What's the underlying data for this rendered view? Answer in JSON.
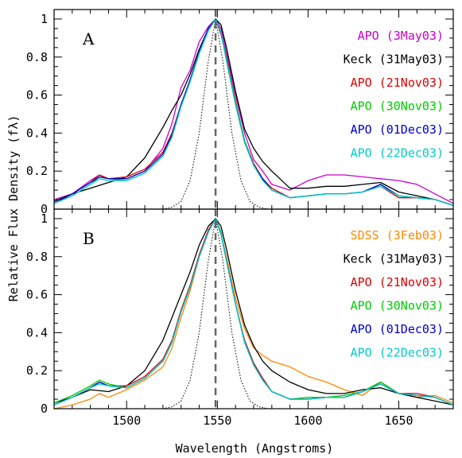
{
  "chart_data": [
    {
      "type": "line",
      "panel_label": "A",
      "xlim": [
        1460,
        1680
      ],
      "ylim": [
        0,
        1.05
      ],
      "xticks": [
        1500,
        1550,
        1600,
        1650
      ],
      "yticks": [
        0,
        0.2,
        0.4,
        0.6,
        0.8,
        1
      ],
      "ytick_labels": [
        "0",
        "0.2",
        "0.4",
        "0.6",
        "0.8",
        "1"
      ],
      "vline": 1549,
      "legend_position": "top-right",
      "series": [
        {
          "name": "APO (3May03)",
          "color": "#cc00cc",
          "x": [
            1460,
            1470,
            1480,
            1485,
            1490,
            1500,
            1510,
            1520,
            1525,
            1530,
            1535,
            1540,
            1545,
            1549,
            1552,
            1555,
            1560,
            1565,
            1570,
            1575,
            1580,
            1590,
            1600,
            1610,
            1620,
            1630,
            1640,
            1650,
            1660,
            1670,
            1680
          ],
          "y": [
            0.05,
            0.08,
            0.15,
            0.18,
            0.16,
            0.16,
            0.2,
            0.32,
            0.45,
            0.64,
            0.73,
            0.88,
            0.96,
            1.0,
            0.95,
            0.82,
            0.6,
            0.4,
            0.26,
            0.2,
            0.13,
            0.1,
            0.15,
            0.18,
            0.18,
            0.17,
            0.16,
            0.15,
            0.13,
            0.08,
            0.03
          ]
        },
        {
          "name": "Keck (31May03)",
          "color": "#000000",
          "x": [
            1460,
            1470,
            1480,
            1490,
            1500,
            1510,
            1520,
            1525,
            1530,
            1535,
            1540,
            1545,
            1549,
            1552,
            1555,
            1560,
            1565,
            1570,
            1575,
            1580,
            1590,
            1600,
            1610,
            1620,
            1630,
            1640,
            1650,
            1660,
            1670,
            1680
          ],
          "y": [
            0.04,
            0.08,
            0.11,
            0.14,
            0.17,
            0.27,
            0.43,
            0.52,
            0.6,
            0.71,
            0.84,
            0.95,
            1.0,
            0.97,
            0.85,
            0.62,
            0.42,
            0.32,
            0.25,
            0.2,
            0.11,
            0.11,
            0.12,
            0.12,
            0.13,
            0.14,
            0.09,
            0.07,
            0.05,
            0.02
          ]
        },
        {
          "name": "APO (21Nov03)",
          "color": "#dd0000",
          "x": [
            1460,
            1470,
            1480,
            1485,
            1490,
            1500,
            1510,
            1520,
            1525,
            1530,
            1535,
            1540,
            1545,
            1549,
            1552,
            1555,
            1560,
            1565,
            1570,
            1575,
            1580,
            1590,
            1600,
            1610,
            1620,
            1630,
            1640,
            1650,
            1660,
            1670,
            1680
          ],
          "y": [
            0.03,
            0.08,
            0.14,
            0.18,
            0.16,
            0.17,
            0.21,
            0.3,
            0.4,
            0.55,
            0.68,
            0.82,
            0.94,
            1.0,
            0.92,
            0.8,
            0.57,
            0.36,
            0.24,
            0.16,
            0.11,
            0.06,
            0.07,
            0.08,
            0.08,
            0.09,
            0.12,
            0.06,
            0.06,
            0.05,
            0.02
          ]
        },
        {
          "name": "APO (30Nov03)",
          "color": "#00cc00",
          "x": [
            1460,
            1470,
            1480,
            1485,
            1490,
            1500,
            1510,
            1520,
            1525,
            1530,
            1535,
            1540,
            1545,
            1549,
            1552,
            1555,
            1560,
            1565,
            1570,
            1575,
            1580,
            1590,
            1600,
            1610,
            1620,
            1630,
            1640,
            1650,
            1660,
            1670,
            1680
          ],
          "y": [
            0.03,
            0.07,
            0.13,
            0.17,
            0.16,
            0.15,
            0.19,
            0.28,
            0.38,
            0.54,
            0.67,
            0.82,
            0.94,
            1.0,
            0.93,
            0.78,
            0.55,
            0.35,
            0.23,
            0.15,
            0.1,
            0.06,
            0.07,
            0.08,
            0.08,
            0.09,
            0.13,
            0.07,
            0.06,
            0.05,
            0.02
          ]
        },
        {
          "name": "APO (01Dec03)",
          "color": "#0000cc",
          "x": [
            1460,
            1470,
            1480,
            1485,
            1490,
            1500,
            1510,
            1520,
            1525,
            1530,
            1535,
            1540,
            1545,
            1549,
            1552,
            1555,
            1560,
            1565,
            1570,
            1575,
            1580,
            1590,
            1600,
            1610,
            1620,
            1630,
            1640,
            1650,
            1660,
            1670,
            1680
          ],
          "y": [
            0.03,
            0.08,
            0.14,
            0.17,
            0.16,
            0.16,
            0.2,
            0.29,
            0.39,
            0.55,
            0.68,
            0.83,
            0.95,
            1.0,
            0.93,
            0.79,
            0.56,
            0.36,
            0.23,
            0.16,
            0.1,
            0.06,
            0.07,
            0.08,
            0.08,
            0.09,
            0.13,
            0.07,
            0.06,
            0.05,
            0.02
          ]
        },
        {
          "name": "APO (22Dec03)",
          "color": "#00cccc",
          "x": [
            1460,
            1470,
            1480,
            1485,
            1490,
            1500,
            1510,
            1520,
            1525,
            1530,
            1535,
            1540,
            1545,
            1549,
            1552,
            1555,
            1560,
            1565,
            1570,
            1575,
            1580,
            1590,
            1600,
            1610,
            1620,
            1630,
            1640,
            1650,
            1660,
            1670,
            1680
          ],
          "y": [
            0.03,
            0.07,
            0.13,
            0.16,
            0.15,
            0.15,
            0.19,
            0.28,
            0.38,
            0.54,
            0.67,
            0.82,
            0.94,
            1.0,
            0.93,
            0.79,
            0.56,
            0.36,
            0.23,
            0.15,
            0.1,
            0.06,
            0.07,
            0.08,
            0.08,
            0.09,
            0.12,
            0.07,
            0.06,
            0.05,
            0.02
          ]
        },
        {
          "name": "",
          "color": "#000000",
          "style": "dotted",
          "x": [
            1520,
            1525,
            1530,
            1535,
            1540,
            1545,
            1549,
            1553,
            1558,
            1563,
            1568,
            1573,
            1578
          ],
          "y": [
            0.0,
            0.01,
            0.04,
            0.15,
            0.4,
            0.78,
            1.0,
            0.78,
            0.4,
            0.15,
            0.04,
            0.01,
            0.0
          ]
        }
      ]
    },
    {
      "type": "line",
      "panel_label": "B",
      "xlim": [
        1460,
        1680
      ],
      "ylim": [
        0,
        1.05
      ],
      "xticks": [
        1500,
        1550,
        1600,
        1650
      ],
      "xtick_labels": [
        "1500",
        "1550",
        "1600",
        "1650"
      ],
      "yticks": [
        0,
        0.2,
        0.4,
        0.6,
        0.8,
        1
      ],
      "ytick_labels": [
        "0",
        "0.2",
        "0.4",
        "0.6",
        "0.8",
        "1"
      ],
      "vline": 1549,
      "legend_position": "top-right",
      "series": [
        {
          "name": "SDSS (3Feb03)",
          "color": "#ff8800",
          "x": [
            1460,
            1470,
            1480,
            1485,
            1490,
            1500,
            1510,
            1520,
            1525,
            1530,
            1535,
            1540,
            1545,
            1549,
            1552,
            1555,
            1560,
            1565,
            1570,
            1575,
            1580,
            1590,
            1600,
            1610,
            1620,
            1630,
            1640,
            1650,
            1660,
            1670,
            1680
          ],
          "y": [
            0.0,
            0.02,
            0.05,
            0.08,
            0.06,
            0.1,
            0.15,
            0.22,
            0.32,
            0.48,
            0.62,
            0.8,
            0.93,
            1.0,
            0.92,
            0.8,
            0.58,
            0.42,
            0.32,
            0.28,
            0.25,
            0.22,
            0.17,
            0.14,
            0.1,
            0.07,
            0.14,
            0.08,
            0.06,
            0.07,
            0.03
          ]
        },
        {
          "name": "Keck (31May03)",
          "color": "#000000",
          "x": [
            1460,
            1470,
            1480,
            1490,
            1500,
            1510,
            1520,
            1525,
            1530,
            1535,
            1540,
            1545,
            1549,
            1552,
            1555,
            1560,
            1565,
            1570,
            1575,
            1580,
            1590,
            1600,
            1610,
            1620,
            1630,
            1640,
            1650,
            1660,
            1670,
            1680
          ],
          "y": [
            0.03,
            0.06,
            0.1,
            0.09,
            0.12,
            0.2,
            0.36,
            0.48,
            0.6,
            0.72,
            0.86,
            0.96,
            1.0,
            0.96,
            0.84,
            0.62,
            0.44,
            0.33,
            0.25,
            0.2,
            0.14,
            0.1,
            0.08,
            0.08,
            0.1,
            0.11,
            0.08,
            0.06,
            0.04,
            0.02
          ]
        },
        {
          "name": "APO (21Nov03)",
          "color": "#dd0000",
          "x": [
            1460,
            1470,
            1480,
            1485,
            1490,
            1500,
            1510,
            1520,
            1525,
            1530,
            1535,
            1540,
            1545,
            1549,
            1552,
            1555,
            1560,
            1565,
            1570,
            1575,
            1580,
            1590,
            1600,
            1610,
            1620,
            1630,
            1640,
            1650,
            1660,
            1670,
            1680
          ],
          "y": [
            0.02,
            0.06,
            0.11,
            0.14,
            0.12,
            0.12,
            0.17,
            0.26,
            0.36,
            0.52,
            0.65,
            0.81,
            0.94,
            1.0,
            0.92,
            0.78,
            0.55,
            0.36,
            0.24,
            0.16,
            0.09,
            0.05,
            0.05,
            0.06,
            0.06,
            0.09,
            0.14,
            0.08,
            0.08,
            0.06,
            0.02
          ]
        },
        {
          "name": "APO (30Nov03)",
          "color": "#00cc00",
          "x": [
            1460,
            1470,
            1480,
            1485,
            1490,
            1500,
            1510,
            1520,
            1525,
            1530,
            1535,
            1540,
            1545,
            1549,
            1552,
            1555,
            1560,
            1565,
            1570,
            1575,
            1580,
            1590,
            1600,
            1610,
            1620,
            1630,
            1640,
            1650,
            1660,
            1670,
            1680
          ],
          "y": [
            0.03,
            0.07,
            0.12,
            0.15,
            0.13,
            0.11,
            0.16,
            0.25,
            0.35,
            0.51,
            0.64,
            0.8,
            0.93,
            1.0,
            0.93,
            0.78,
            0.55,
            0.35,
            0.23,
            0.15,
            0.09,
            0.05,
            0.06,
            0.06,
            0.07,
            0.09,
            0.14,
            0.08,
            0.07,
            0.06,
            0.02
          ]
        },
        {
          "name": "APO (01Dec03)",
          "color": "#0000cc",
          "x": [
            1460,
            1470,
            1480,
            1485,
            1490,
            1500,
            1510,
            1520,
            1525,
            1530,
            1535,
            1540,
            1545,
            1549,
            1552,
            1555,
            1560,
            1565,
            1570,
            1575,
            1580,
            1590,
            1600,
            1610,
            1620,
            1630,
            1640,
            1650,
            1660,
            1670,
            1680
          ],
          "y": [
            0.02,
            0.06,
            0.11,
            0.14,
            0.12,
            0.11,
            0.16,
            0.25,
            0.35,
            0.51,
            0.64,
            0.8,
            0.93,
            1.0,
            0.92,
            0.78,
            0.55,
            0.35,
            0.23,
            0.15,
            0.09,
            0.05,
            0.05,
            0.06,
            0.06,
            0.09,
            0.13,
            0.08,
            0.07,
            0.06,
            0.02
          ]
        },
        {
          "name": "APO (22Dec03)",
          "color": "#00cccc",
          "x": [
            1460,
            1470,
            1480,
            1485,
            1490,
            1500,
            1510,
            1520,
            1525,
            1530,
            1535,
            1540,
            1545,
            1549,
            1552,
            1555,
            1560,
            1565,
            1570,
            1575,
            1580,
            1590,
            1600,
            1610,
            1620,
            1630,
            1640,
            1650,
            1660,
            1670,
            1680
          ],
          "y": [
            0.02,
            0.06,
            0.11,
            0.13,
            0.12,
            0.11,
            0.16,
            0.25,
            0.35,
            0.51,
            0.64,
            0.8,
            0.93,
            1.0,
            0.92,
            0.78,
            0.55,
            0.35,
            0.23,
            0.15,
            0.09,
            0.05,
            0.05,
            0.06,
            0.06,
            0.09,
            0.13,
            0.08,
            0.07,
            0.06,
            0.02
          ]
        },
        {
          "name": "",
          "color": "#000000",
          "style": "dotted",
          "x": [
            1520,
            1525,
            1530,
            1535,
            1540,
            1545,
            1549,
            1553,
            1558,
            1563,
            1568,
            1573,
            1578
          ],
          "y": [
            0.0,
            0.01,
            0.04,
            0.15,
            0.4,
            0.78,
            1.0,
            0.78,
            0.4,
            0.15,
            0.04,
            0.01,
            0.0
          ]
        }
      ]
    }
  ],
  "xlabel": "Wavelength (Angstroms)",
  "ylabel": "Relative Flux Density (fλ)"
}
